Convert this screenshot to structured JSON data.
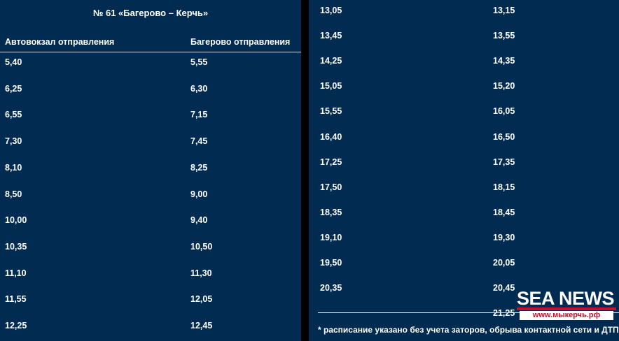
{
  "title": "№ 61 «Багерово – Керчь»",
  "columns": {
    "left": "Автовокзал отправления",
    "right": "Багерово отправления"
  },
  "left_rows": [
    [
      "5,40",
      "5,55"
    ],
    [
      "6,25",
      "6,30"
    ],
    [
      "6,55",
      "7,15"
    ],
    [
      "7,30",
      "7,45"
    ],
    [
      "8,10",
      "8,25"
    ],
    [
      "8,50",
      "9,00"
    ],
    [
      "10,00",
      "9,40"
    ],
    [
      "10,35",
      "10,50"
    ],
    [
      "11,10",
      "11,30"
    ],
    [
      "11,55",
      "12,05"
    ],
    [
      "12,25",
      "12,45"
    ]
  ],
  "right_rows": [
    [
      "13,05",
      "13,15"
    ],
    [
      "13,45",
      "13,55"
    ],
    [
      "14,25",
      "14,35"
    ],
    [
      "15,05",
      "15,20"
    ],
    [
      "15,55",
      "16,05"
    ],
    [
      "16,40",
      "16,50"
    ],
    [
      "17,25",
      "17,35"
    ],
    [
      "17,50",
      "18,15"
    ],
    [
      "18,35",
      "18,45"
    ],
    [
      "19,10",
      "19,30"
    ],
    [
      "19,50",
      "20,05"
    ],
    [
      "20,35",
      "20,45"
    ],
    [
      "",
      "21,25"
    ]
  ],
  "footnote": "* расписание указано без учета заторов, обрыва контактной сети и ДТП",
  "logo": {
    "name": "SEA NEWS",
    "url": "www.мыкерчь.рф"
  }
}
